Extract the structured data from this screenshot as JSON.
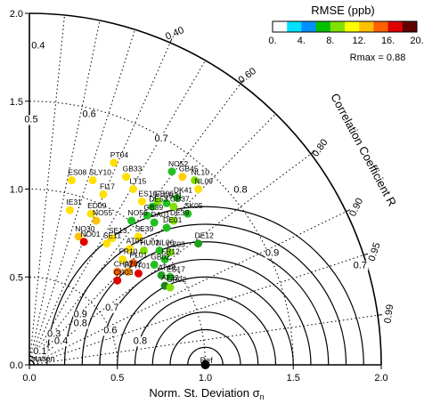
{
  "chart_data": {
    "type": "scatter",
    "subtype": "taylor-diagram",
    "xlabel": "Norm. St. Deviation σ",
    "xlabel_subscript": "n",
    "ylabel": "",
    "arc_label": "Correlation Coefficient R",
    "colorbar": {
      "title": "RMSE (ppb)",
      "tick_labels": [
        "0.",
        "4.",
        "8.",
        "12.",
        "16.",
        "20."
      ],
      "range": [
        0,
        20
      ],
      "colors": [
        "#ffffff",
        "#00e0ff",
        "#0090ff",
        "#00c000",
        "#80e000",
        "#ffff00",
        "#ffc000",
        "#ff6000",
        "#e00000",
        "#600000"
      ],
      "rmax_label": "Rmax = 0.88"
    },
    "axes": {
      "xlim": [
        0,
        2.0
      ],
      "ylim": [
        0,
        2.0
      ],
      "x_tick_labels": [
        "0.0",
        "0.5",
        "1.0",
        "1.5",
        "2.0"
      ],
      "y_tick_labels": [
        "0.0",
        "0.5",
        "1.0",
        "1.5",
        "2.0"
      ],
      "x_ticks": [
        0,
        0.5,
        1.0,
        1.5,
        2.0
      ],
      "y_ticks": [
        0,
        0.5,
        1.0,
        1.5,
        2.0
      ]
    },
    "correlation_ticks": [
      {
        "r": 0.4,
        "label": "0.40"
      },
      {
        "r": 0.6,
        "label": "0.60"
      },
      {
        "r": 0.8,
        "label": "0.80"
      },
      {
        "r": 0.9,
        "label": "0.90"
      },
      {
        "r": 0.95,
        "label": "0.95"
      },
      {
        "r": 0.99,
        "label": "0.99"
      }
    ],
    "correlation_lines": [
      0.1,
      0.2,
      0.3,
      0.4,
      0.5,
      0.6,
      0.7,
      0.8,
      0.9,
      0.95,
      0.99
    ],
    "sd_arcs": [
      0.5,
      1.0,
      1.5
    ],
    "rmse_contours": [
      0.1,
      0.2,
      0.3,
      0.4,
      0.5,
      0.6,
      0.7,
      0.8,
      0.9
    ],
    "rmse_labels": [
      {
        "text": "0.4",
        "x": 0.05,
        "y": 1.8
      },
      {
        "text": "0.5",
        "x": 0.01,
        "y": 1.38
      },
      {
        "text": "0.6",
        "x": 0.34,
        "y": 1.41
      },
      {
        "text": "0.7",
        "x": 0.75,
        "y": 1.27
      },
      {
        "text": "0.8",
        "x": 1.2,
        "y": 0.98
      },
      {
        "text": "0.9",
        "x": 1.38,
        "y": 0.62
      },
      {
        "text": "0.7",
        "x": 1.88,
        "y": 0.55
      },
      {
        "text": "0.6",
        "x": 0.46,
        "y": 0.18
      },
      {
        "text": "0.7",
        "x": 0.47,
        "y": 0.31
      },
      {
        "text": "0.8",
        "x": 0.63,
        "y": 0.12
      },
      {
        "text": "0.9",
        "x": 0.29,
        "y": 0.27
      },
      {
        "text": "0.8",
        "x": 0.29,
        "y": 0.22
      },
      {
        "text": "0.3",
        "x": 0.14,
        "y": 0.16
      },
      {
        "text": "0.4",
        "x": 0.18,
        "y": 0.12
      },
      {
        "text": "0.1",
        "x": 0.06,
        "y": 0.06
      }
    ],
    "special_labels": [
      {
        "text": "station",
        "x": 0.01,
        "y": 0.02
      },
      {
        "text": "Ref",
        "x": 0.97,
        "y": 0.01
      }
    ],
    "reference_point": {
      "x": 1.0,
      "y": 0.0,
      "color": "#000000"
    },
    "points": [
      {
        "label": "PT04",
        "x": 0.48,
        "y": 1.15,
        "color": "#ffe000"
      },
      {
        "label": "ES08",
        "x": 0.24,
        "y": 1.05,
        "color": "#ffe000"
      },
      {
        "label": "SLY10",
        "x": 0.36,
        "y": 1.05,
        "color": "#ffe000"
      },
      {
        "label": "GB33",
        "x": 0.55,
        "y": 1.07,
        "color": "#ffe000"
      },
      {
        "label": "NO52",
        "x": 0.81,
        "y": 1.1,
        "color": "#20c020"
      },
      {
        "label": "GB45",
        "x": 0.87,
        "y": 1.07,
        "color": "#ffd000"
      },
      {
        "label": "NL10",
        "x": 0.94,
        "y": 1.05,
        "color": "#80e000"
      },
      {
        "label": "LT15",
        "x": 0.59,
        "y": 1.0,
        "color": "#ffe000"
      },
      {
        "label": "NL09",
        "x": 0.96,
        "y": 1.0,
        "color": "#ffe000"
      },
      {
        "label": "FI17",
        "x": 0.42,
        "y": 0.97,
        "color": "#ffe000"
      },
      {
        "label": "ES10",
        "x": 0.64,
        "y": 0.93,
        "color": "#ffe000"
      },
      {
        "label": "DK41",
        "x": 0.84,
        "y": 0.95,
        "color": "#20c020"
      },
      {
        "label": "GB06",
        "x": 0.73,
        "y": 0.93,
        "color": "#80e000"
      },
      {
        "label": "GB37",
        "x": 0.82,
        "y": 0.9,
        "color": "#80e000"
      },
      {
        "label": "GB31",
        "x": 0.78,
        "y": 0.92,
        "color": "#20c020"
      },
      {
        "label": "DE53",
        "x": 0.7,
        "y": 0.9,
        "color": "#20c020"
      },
      {
        "label": "IE31",
        "x": 0.23,
        "y": 0.88,
        "color": "#ffe000"
      },
      {
        "label": "ED09",
        "x": 0.35,
        "y": 0.86,
        "color": "#ffe000"
      },
      {
        "label": "GB39",
        "x": 0.67,
        "y": 0.85,
        "color": "#20c020"
      },
      {
        "label": "SK05",
        "x": 0.9,
        "y": 0.86,
        "color": "#20c020"
      },
      {
        "label": "NO55",
        "x": 0.38,
        "y": 0.82,
        "color": "#ffc000"
      },
      {
        "label": "NO56",
        "x": 0.58,
        "y": 0.82,
        "color": "#20c020"
      },
      {
        "label": "DE39",
        "x": 0.82,
        "y": 0.82,
        "color": "#80e000"
      },
      {
        "label": "DA01",
        "x": 0.71,
        "y": 0.81,
        "color": "#20c020"
      },
      {
        "label": "DE01",
        "x": 0.78,
        "y": 0.78,
        "color": "#20c020"
      },
      {
        "label": "NO30",
        "x": 0.28,
        "y": 0.73,
        "color": "#ffc000"
      },
      {
        "label": "SE13",
        "x": 0.47,
        "y": 0.72,
        "color": "#ffe000"
      },
      {
        "label": "SE39",
        "x": 0.62,
        "y": 0.73,
        "color": "#ffe000"
      },
      {
        "label": "DE12",
        "x": 0.96,
        "y": 0.69,
        "color": "#20a020"
      },
      {
        "label": "NO01",
        "x": 0.31,
        "y": 0.7,
        "color": "#e00000"
      },
      {
        "label": "SE11",
        "x": 0.44,
        "y": 0.69,
        "color": "#ffe000"
      },
      {
        "label": "AT05",
        "x": 0.57,
        "y": 0.66,
        "color": "#ffe000"
      },
      {
        "label": "HU02",
        "x": 0.65,
        "y": 0.65,
        "color": "#80e000"
      },
      {
        "label": "NL06",
        "x": 0.74,
        "y": 0.65,
        "color": "#20c020"
      },
      {
        "label": "CZ03",
        "x": 0.8,
        "y": 0.64,
        "color": "#80e000"
      },
      {
        "label": "FR10",
        "x": 0.53,
        "y": 0.6,
        "color": "#ffe000"
      },
      {
        "label": "PL01",
        "x": 0.59,
        "y": 0.58,
        "color": "#ff6000"
      },
      {
        "label": "FR12",
        "x": 0.77,
        "y": 0.6,
        "color": "#20c020"
      },
      {
        "label": "GB02",
        "x": 0.71,
        "y": 0.57,
        "color": "#20c020"
      },
      {
        "label": "CH02",
        "x": 0.5,
        "y": 0.53,
        "color": "#ff6000"
      },
      {
        "label": "AT02",
        "x": 0.56,
        "y": 0.53,
        "color": "#ff9000"
      },
      {
        "label": "IT01",
        "x": 0.62,
        "y": 0.52,
        "color": "#e00000"
      },
      {
        "label": "CH03",
        "x": 0.5,
        "y": 0.48,
        "color": "#e00000"
      },
      {
        "label": "AT48",
        "x": 0.75,
        "y": 0.51,
        "color": "#20a020"
      },
      {
        "label": "ES17",
        "x": 0.8,
        "y": 0.5,
        "color": "#20c020"
      },
      {
        "label": "AT32",
        "x": 0.77,
        "y": 0.45,
        "color": "#208020"
      },
      {
        "label": "GR02",
        "x": 0.8,
        "y": 0.44,
        "color": "#80e000"
      }
    ]
  }
}
